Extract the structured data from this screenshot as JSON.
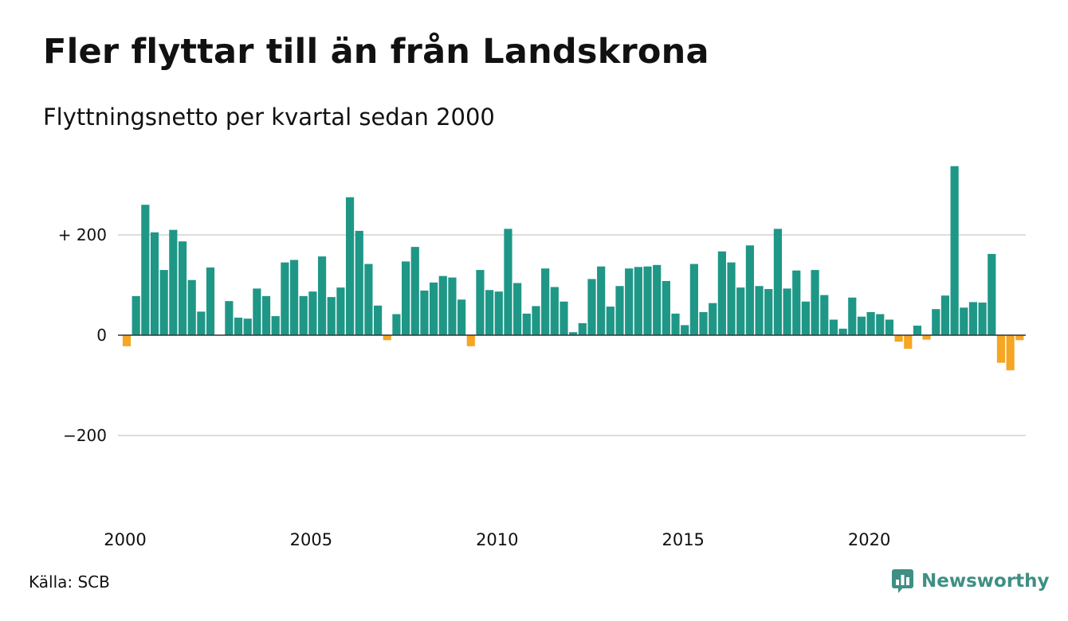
{
  "title": "Fler flyttar till än från Landskrona",
  "subtitle": "Flyttningsnetto per kvartal sedan 2000",
  "source": "Källa: SCB",
  "brand": {
    "name": "Newsworthy",
    "icon": "newsworthy-logo-icon"
  },
  "colors": {
    "positive": "#1f9787",
    "negative": "#f5a623",
    "grid": "#dddddd",
    "zero_line": "#333333"
  },
  "chart_data": {
    "type": "bar",
    "title": "Fler flyttar till än från Landskrona",
    "subtitle": "Flyttningsnetto per kvartal sedan 2000",
    "x_start": "2000 Q1",
    "x_tick_labels": [
      "2000",
      "2005",
      "2010",
      "2015",
      "2020"
    ],
    "y_ticks": [
      200,
      0,
      -200
    ],
    "y_tick_labels": [
      "+ 200",
      "0",
      "−200"
    ],
    "ylim": [
      -365,
      370
    ],
    "grid": true,
    "values": [
      -22,
      78,
      260,
      205,
      130,
      210,
      187,
      110,
      47,
      135,
      0,
      68,
      35,
      33,
      93,
      78,
      38,
      145,
      150,
      78,
      87,
      157,
      76,
      95,
      275,
      208,
      142,
      59,
      -10,
      42,
      147,
      176,
      89,
      105,
      118,
      115,
      71,
      -22,
      130,
      90,
      87,
      212,
      104,
      43,
      58,
      133,
      96,
      67,
      6,
      24,
      112,
      137,
      57,
      98,
      133,
      136,
      137,
      140,
      108,
      43,
      20,
      142,
      46,
      64,
      167,
      145,
      95,
      179,
      98,
      92,
      212,
      93,
      129,
      67,
      130,
      80,
      31,
      13,
      75,
      37,
      46,
      42,
      31,
      -13,
      -27,
      19,
      -9,
      52,
      79,
      337,
      55,
      66,
      65,
      162,
      -55,
      -70,
      -10
    ]
  }
}
